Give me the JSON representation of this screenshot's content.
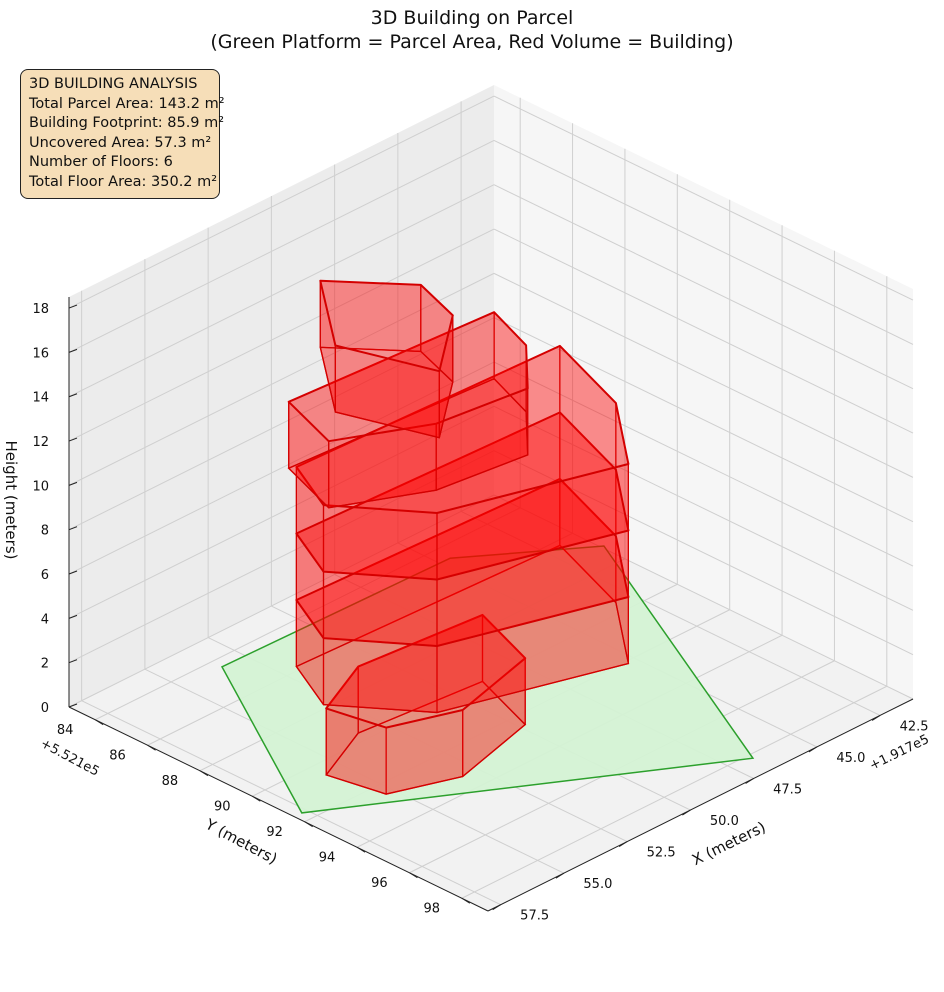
{
  "title": {
    "line1": "3D Building on Parcel",
    "line2": "(Green Platform = Parcel Area, Red Volume = Building)"
  },
  "info_box": {
    "heading": "3D BUILDING ANALYSIS",
    "total_parcel_area": "Total Parcel Area: 143.2 m²",
    "building_footprint": "Building Footprint: 85.9 m²",
    "uncovered_area": "Uncovered Area: 57.3 m²",
    "number_of_floors": "Number of Floors: 6",
    "total_floor_area": "Total Floor Area: 350.2 m²"
  },
  "colors": {
    "parcel_fill": "#d4f2d4",
    "parcel_edge": "#2ca02c",
    "building_fill": "#ff0000",
    "building_edge": "#d40000",
    "infobox_bg": "#f6deb8"
  },
  "chart_data": {
    "type": "3d_polygon",
    "title": "3D Building on Parcel\n(Green Platform = Parcel Area, Red Volume = Building)",
    "xlabel": "X (meters)",
    "ylabel": "Y (meters)",
    "zlabel": "Height (meters)",
    "x_offset": "+1.917e5",
    "y_offset": "+5.521e5",
    "x_ticks": [
      "42.5",
      "45.0",
      "47.5",
      "50.0",
      "52.5",
      "55.0",
      "57.5"
    ],
    "y_ticks": [
      "84",
      "86",
      "88",
      "90",
      "92",
      "94",
      "96",
      "98"
    ],
    "z_ticks": [
      "0",
      "2",
      "4",
      "6",
      "8",
      "10",
      "12",
      "14",
      "16",
      "18"
    ],
    "xlim": [
      41.2,
      58.0
    ],
    "ylim": [
      83.0,
      99.0
    ],
    "zlim": [
      0,
      18.5
    ],
    "grid": true,
    "parcel": {
      "name": "Parcel Area",
      "z": 0,
      "polygon": [
        [
          44.6,
          84.6
        ],
        [
          41.1,
          87.1
        ],
        [
          46.7,
          98.2
        ],
        [
          57.7,
          91.6
        ],
        [
          53.4,
          84.4
        ]
      ]
    },
    "building": {
      "name": "Building",
      "floors": 6,
      "floor_height": 3,
      "floor_polygons": [
        [
          [
            53.4,
            89.6
          ],
          [
            55.7,
            90.6
          ],
          [
            55.3,
            92.5
          ],
          [
            53.1,
            93.3
          ],
          [
            49.8,
            92.5
          ],
          [
            48.9,
            90.0
          ]
        ],
        [
          [
            44.6,
            88.8
          ],
          [
            54.6,
            88.4
          ],
          [
            55.6,
            90.4
          ],
          [
            53.7,
            92.9
          ],
          [
            48.0,
            94.7
          ],
          [
            45.8,
            92.1
          ]
        ],
        [
          [
            44.6,
            88.8
          ],
          [
            54.6,
            88.4
          ],
          [
            55.6,
            90.4
          ],
          [
            53.7,
            92.9
          ],
          [
            48.0,
            94.7
          ],
          [
            45.8,
            92.1
          ]
        ],
        [
          [
            44.6,
            88.8
          ],
          [
            54.6,
            88.4
          ],
          [
            55.6,
            90.4
          ],
          [
            53.7,
            92.9
          ],
          [
            48.0,
            94.7
          ],
          [
            45.8,
            92.1
          ]
        ],
        [
          [
            47.2,
            88.8
          ],
          [
            54.8,
            88.3
          ],
          [
            55.6,
            90.6
          ],
          [
            52.8,
            92.0
          ],
          [
            49.6,
            92.4
          ],
          [
            47.9,
            90.7
          ]
        ],
        [
          [
            52.0,
            86.8
          ],
          [
            54.3,
            89.6
          ],
          [
            53.3,
            92.6
          ],
          [
            50.8,
            90.7
          ],
          [
            50.2,
            88.9
          ]
        ]
      ]
    }
  }
}
